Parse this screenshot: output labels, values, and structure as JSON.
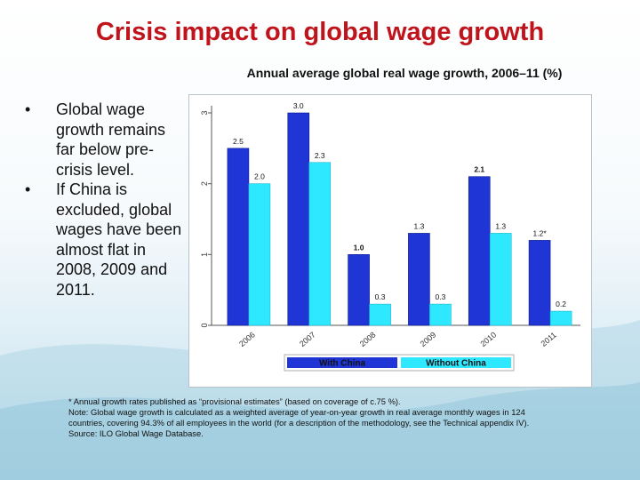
{
  "title": "Crisis impact on global wage growth",
  "bullets": [
    "Global wage growth remains far below pre-crisis level.",
    "If China is excluded, global wages have been almost flat in 2008, 2009 and 2011."
  ],
  "chart_data": {
    "type": "bar",
    "title": "Annual average global real wage growth, 2006–11 (%)",
    "categories": [
      "2006",
      "2007",
      "2008",
      "2009",
      "2010",
      "2011"
    ],
    "series": [
      {
        "name": "With China",
        "color": "#1f35d6",
        "values": [
          2.5,
          3.0,
          1.0,
          1.3,
          2.1,
          1.2
        ],
        "labels": [
          "2.5",
          "3.0",
          "1.0",
          "1.3",
          "2.1",
          "1.2*"
        ]
      },
      {
        "name": "Without China",
        "color": "#2ee8ff",
        "values": [
          2.0,
          2.3,
          0.3,
          0.3,
          1.3,
          0.2
        ],
        "labels": [
          "2.0",
          "2.3",
          "0.3",
          "0.3",
          "1.3",
          "0.2"
        ]
      }
    ],
    "yticks": [
      "0",
      "1",
      "2",
      "3"
    ],
    "ylim": [
      0,
      3
    ],
    "legend_position": "bottom",
    "grid": false
  },
  "notes": [
    "*  Annual growth rates published as “provisional estimates” (based on coverage of c.75 %).",
    "Note: Global wage growth is calculated as a weighted average of year-on-year growth in real average monthly wages in 124",
    "countries, covering 94.3% of all employees in the world (for a description of the methodology, see the Technical appendix IV).",
    "Source:  ILO Global Wage Database."
  ]
}
